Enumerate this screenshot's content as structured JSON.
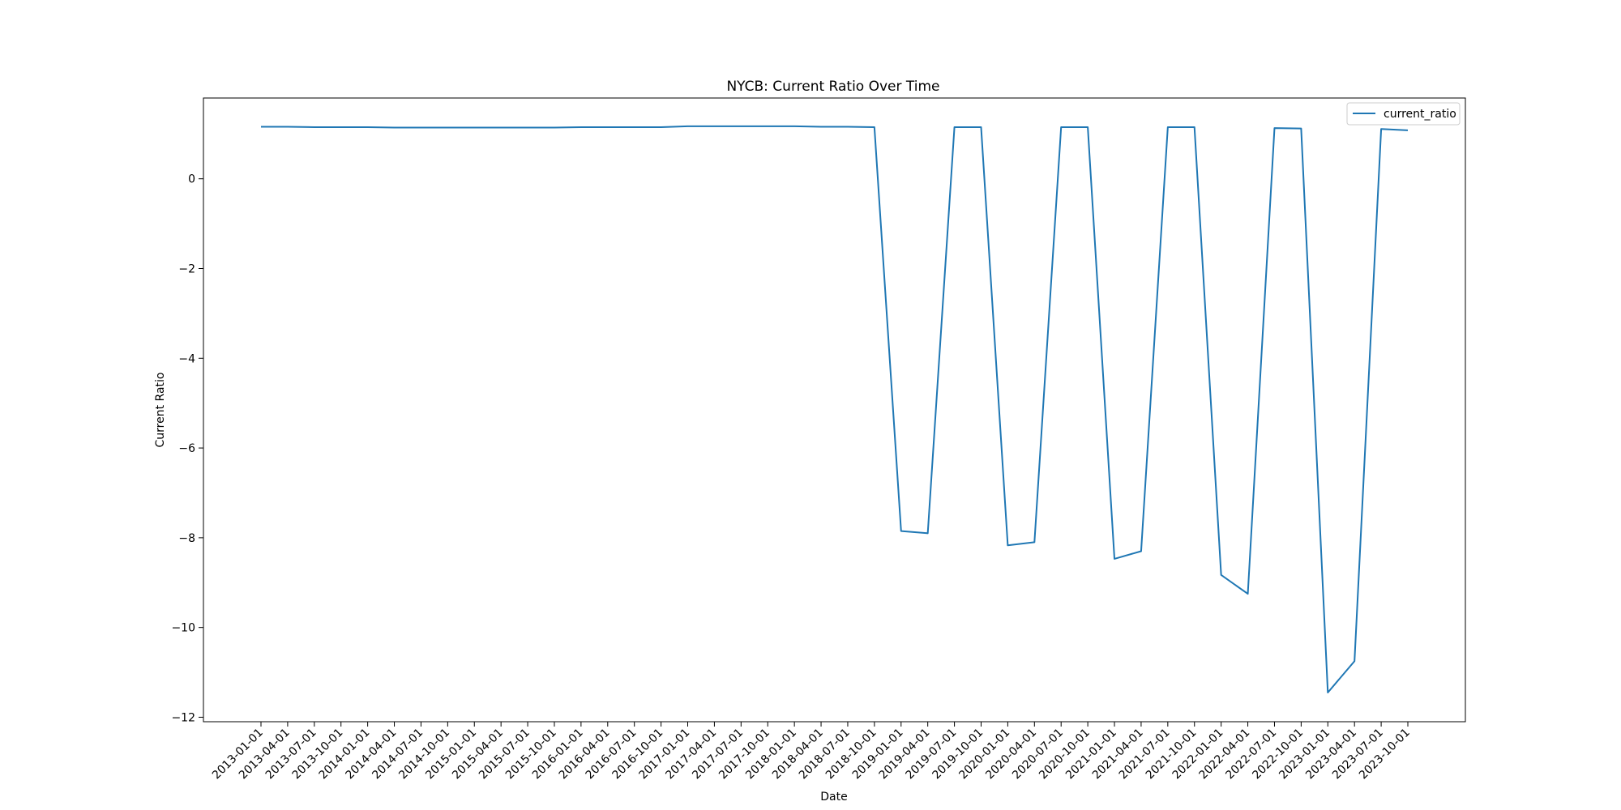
{
  "chart_data": {
    "type": "line",
    "title": "NYCB: Current Ratio Over Time",
    "xlabel": "Date",
    "ylabel": "Current Ratio",
    "ylim": [
      -12.1,
      1.8
    ],
    "yticks": [
      0,
      -2,
      -4,
      -6,
      -8,
      -10,
      -12
    ],
    "grid": false,
    "legend_position": "top-right",
    "x": [
      "2013-01-01",
      "2013-04-01",
      "2013-07-01",
      "2013-10-01",
      "2014-01-01",
      "2014-04-01",
      "2014-07-01",
      "2014-10-01",
      "2015-01-01",
      "2015-04-01",
      "2015-07-01",
      "2015-10-01",
      "2016-01-01",
      "2016-04-01",
      "2016-07-01",
      "2016-10-01",
      "2017-01-01",
      "2017-04-01",
      "2017-07-01",
      "2017-10-01",
      "2018-01-01",
      "2018-04-01",
      "2018-07-01",
      "2018-10-01",
      "2019-01-01",
      "2019-04-01",
      "2019-07-01",
      "2019-10-01",
      "2020-01-01",
      "2020-04-01",
      "2020-07-01",
      "2020-10-01",
      "2021-01-01",
      "2021-04-01",
      "2021-07-01",
      "2021-10-01",
      "2022-01-01",
      "2022-04-01",
      "2022-07-01",
      "2022-10-01",
      "2023-01-01",
      "2023-04-01",
      "2023-07-01",
      "2023-10-01"
    ],
    "series": [
      {
        "name": "current_ratio",
        "color": "#1f77b4",
        "values": [
          1.16,
          1.16,
          1.15,
          1.15,
          1.15,
          1.14,
          1.14,
          1.14,
          1.14,
          1.14,
          1.14,
          1.14,
          1.15,
          1.15,
          1.15,
          1.15,
          1.17,
          1.17,
          1.17,
          1.17,
          1.17,
          1.16,
          1.16,
          1.15,
          -7.85,
          -7.9,
          1.15,
          1.15,
          -8.17,
          -8.1,
          1.15,
          1.15,
          -8.47,
          -8.3,
          1.15,
          1.15,
          -8.83,
          -9.25,
          1.13,
          1.12,
          -11.45,
          -10.75,
          1.11,
          1.08
        ]
      }
    ]
  }
}
